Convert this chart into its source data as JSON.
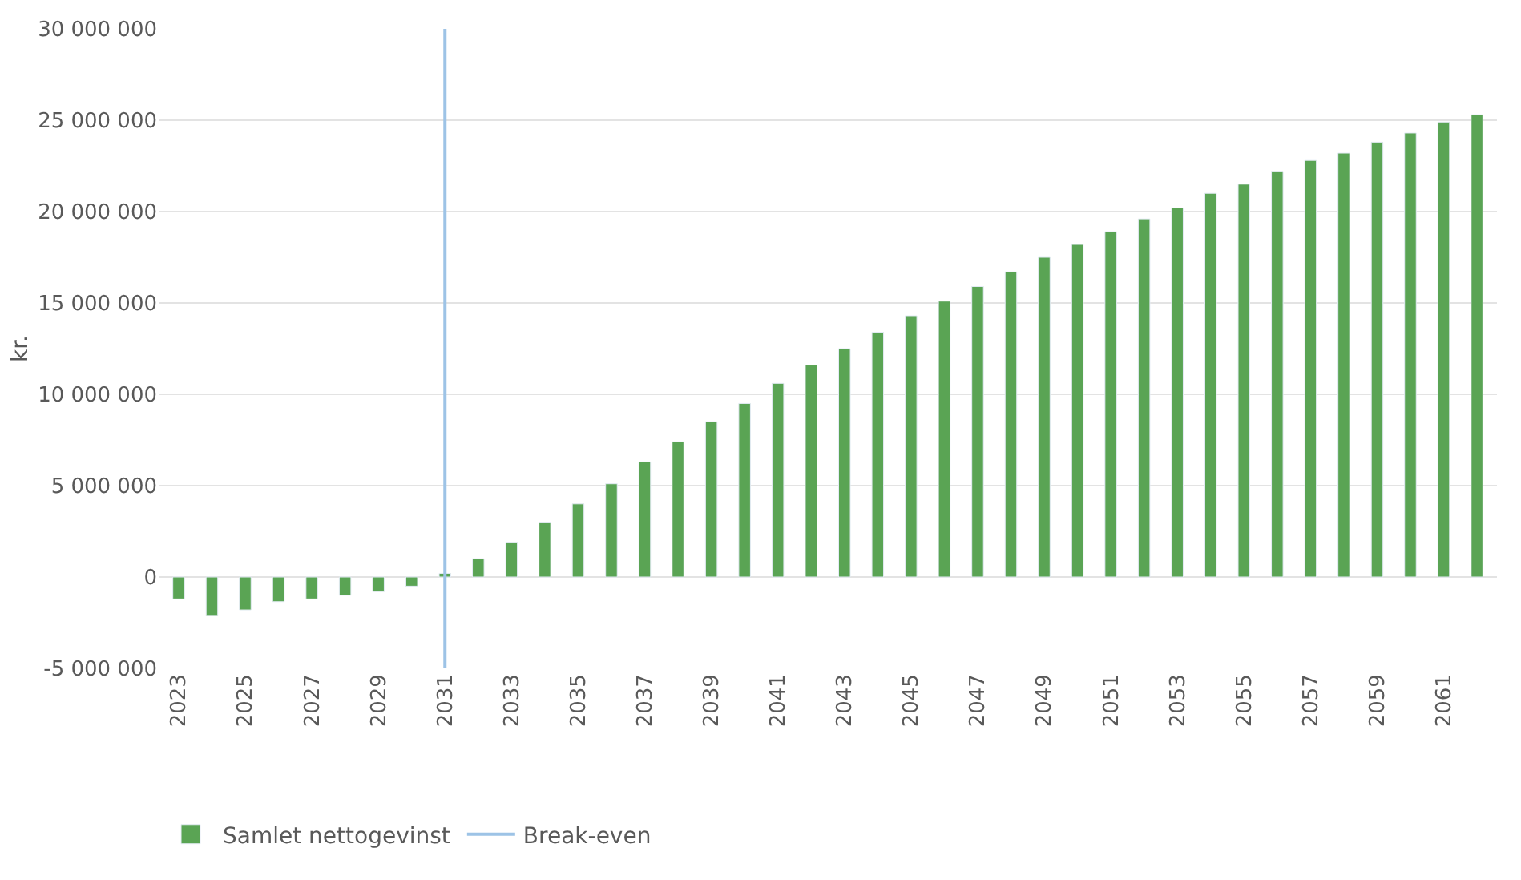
{
  "chart_data": {
    "type": "bar",
    "categories": [
      "2023",
      null,
      "2025",
      null,
      "2027",
      null,
      "2029",
      null,
      "2031",
      null,
      "2033",
      null,
      "2035",
      null,
      "2037",
      null,
      "2039",
      null,
      "2041",
      null,
      "2043",
      null,
      "2045",
      null,
      "2047",
      null,
      "2049",
      null,
      "2051",
      null,
      "2053",
      null,
      "2055",
      null,
      "2057",
      null,
      "2059",
      null,
      "2061",
      null
    ],
    "series": [
      {
        "name": "Samlet nettogevinst",
        "color": "#5aa454",
        "values": [
          -1200000,
          -2100000,
          -1800000,
          -1350000,
          -1200000,
          -1000000,
          -800000,
          -500000,
          200000,
          1000000,
          1900000,
          3000000,
          4000000,
          5100000,
          6300000,
          7400000,
          8500000,
          9500000,
          10600000,
          11600000,
          12500000,
          13400000,
          14300000,
          15100000,
          15900000,
          16700000,
          17500000,
          18200000,
          18900000,
          19600000,
          20200000,
          21000000,
          21500000,
          22200000,
          22800000,
          23200000,
          23800000,
          24300000,
          24900000,
          25300000
        ]
      }
    ],
    "ylabel": "kr.",
    "ylim": [
      -5000000,
      30000000
    ],
    "yticks": [
      {
        "value": -5000000,
        "label": "-5 000 000"
      },
      {
        "value": 0,
        "label": "0"
      },
      {
        "value": 5000000,
        "label": "5 000 000"
      },
      {
        "value": 10000000,
        "label": "10 000 000"
      },
      {
        "value": 15000000,
        "label": "15 000 000"
      },
      {
        "value": 20000000,
        "label": "20 000 000"
      },
      {
        "value": 25000000,
        "label": "25 000 000"
      },
      {
        "value": 30000000,
        "label": "30 000 000"
      }
    ],
    "ref_lines": [
      {
        "axis": "x",
        "value": "2031",
        "label": "Break-even",
        "color": "#9dc3e6"
      }
    ],
    "grid": "y",
    "legend": "bottom"
  }
}
